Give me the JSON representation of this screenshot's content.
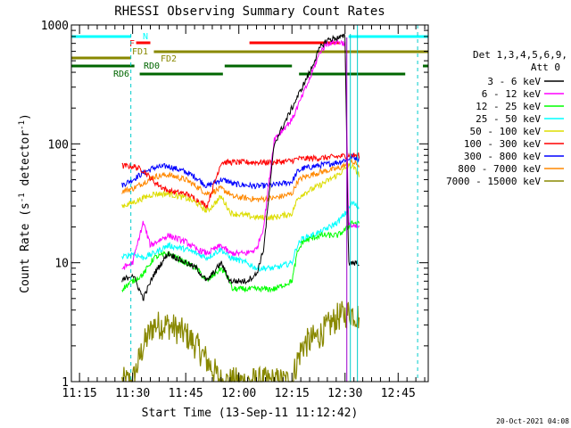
{
  "chart_data": {
    "type": "line",
    "title": "RHESSI Observing Summary Count Rates",
    "xlabel": "Start Time (13-Sep-11 11:12:42)",
    "ylabel_parts": [
      "Count Rate (s",
      "-1",
      " detector",
      "-1",
      ")"
    ],
    "y_scale": "log",
    "ylim": [
      1,
      1000
    ],
    "xlim_minutes": [
      672.7,
      773.5
    ],
    "x_ticks": [
      {
        "label": "11:15",
        "minutes": 675
      },
      {
        "label": "11:30",
        "minutes": 690
      },
      {
        "label": "11:45",
        "minutes": 705
      },
      {
        "label": "12:00",
        "minutes": 720
      },
      {
        "label": "12:15",
        "minutes": 735
      },
      {
        "label": "12:30",
        "minutes": 750
      },
      {
        "label": "12:45",
        "minutes": 765
      }
    ],
    "y_ticks": [
      {
        "label": "1",
        "value": 1
      },
      {
        "label": "10",
        "value": 10
      },
      {
        "label": "100",
        "value": 100
      },
      {
        "label": "1000",
        "value": 1000
      }
    ],
    "legend": {
      "placement": "right",
      "header": [
        "Det 1,3,4,5,6,9,",
        "Att 0"
      ],
      "entries": [
        {
          "label": "3 - 6 keV",
          "color": "#000000"
        },
        {
          "label": "6 - 12 keV",
          "color": "#ff00ff"
        },
        {
          "label": "12 - 25 keV",
          "color": "#00ff00"
        },
        {
          "label": "25 - 50 keV",
          "color": "#00ffff"
        },
        {
          "label": "50 - 100 keV",
          "color": "#dddd00"
        },
        {
          "label": "100 - 300 keV",
          "color": "#ff0000"
        },
        {
          "label": "300 - 800 keV",
          "color": "#0000ff"
        },
        {
          "label": "800 - 7000 keV",
          "color": "#ff8800"
        },
        {
          "label": "7000 - 15000 keV",
          "color": "#888800"
        }
      ]
    },
    "status_bars": [
      {
        "label": "N",
        "color": "#00ffff",
        "segments": [
          [
            672.7,
            689.5
          ],
          [
            751.0,
            773.5
          ]
        ]
      },
      {
        "label": "F",
        "color": "#ff0000",
        "segments": [
          [
            691.0,
            695.0
          ],
          [
            723.0,
            748.5
          ]
        ]
      },
      {
        "label": "FD1",
        "color": "#888800",
        "segments": [
          [
            672.7,
            689.5
          ]
        ]
      },
      {
        "label": "FD2",
        "color": "#888800",
        "segments": [
          [
            696.0,
            773.5
          ]
        ]
      },
      {
        "label": "RD0",
        "color": "#006600",
        "segments": [
          [
            672.7,
            690.5
          ],
          [
            716.0,
            735.0
          ],
          [
            772.0,
            773.5
          ]
        ]
      },
      {
        "label": "RD6",
        "color": "#006600",
        "segments": [
          [
            692.0,
            715.5
          ],
          [
            737.0,
            767.0
          ]
        ]
      }
    ],
    "data_intervals_minutes": [
      [
        687.0,
        690.0
      ],
      [
        690.0,
        717.5
      ],
      [
        717.5,
        736.5
      ],
      [
        736.5,
        751.5
      ],
      [
        751.5,
        754.0
      ]
    ],
    "series": [
      {
        "name": "3 - 6 keV",
        "color": "#000000",
        "x": [
          687,
          690,
          693,
          696,
          700,
          705,
          708,
          711,
          715,
          717.5,
          718,
          722,
          725,
          727,
          730,
          735,
          740,
          743,
          745,
          748,
          750,
          751,
          752,
          754
        ],
        "y": [
          7,
          8,
          5,
          8,
          12,
          10,
          9,
          7,
          10,
          7,
          7,
          7,
          8,
          13,
          100,
          200,
          400,
          650,
          750,
          780,
          800,
          10,
          10,
          10
        ]
      },
      {
        "name": "6 - 12 keV",
        "color": "#ff00ff",
        "x": [
          687,
          690,
          693,
          695,
          700,
          705,
          708,
          711,
          715,
          717.5,
          718,
          722,
          725,
          727,
          730,
          735,
          740,
          743,
          745,
          748,
          750,
          751,
          752,
          754
        ],
        "y": [
          9,
          10,
          22,
          14,
          17,
          15,
          13,
          12,
          14,
          12,
          12,
          12,
          13,
          20,
          110,
          160,
          350,
          600,
          700,
          720,
          700,
          22,
          20,
          20
        ]
      },
      {
        "name": "12 - 25 keV",
        "color": "#00ff00",
        "x": [
          687,
          690,
          693,
          696,
          700,
          705,
          708,
          711,
          715,
          717.5,
          718,
          722,
          725,
          730,
          735,
          736.5,
          738,
          743,
          748,
          751,
          752,
          754
        ],
        "y": [
          6,
          7,
          8,
          11,
          12,
          10,
          9,
          7,
          9,
          7,
          6,
          6,
          6,
          6,
          7,
          12,
          15,
          17,
          17,
          20,
          22,
          21
        ]
      },
      {
        "name": "25 - 50 keV",
        "color": "#00ffff",
        "x": [
          687,
          690,
          693,
          696,
          700,
          705,
          708,
          711,
          715,
          717.5,
          718,
          722,
          725,
          730,
          735,
          736.5,
          738,
          743,
          748,
          751,
          752,
          754
        ],
        "y": [
          11,
          12,
          11,
          12,
          14,
          13,
          12,
          11,
          13,
          11,
          11,
          10,
          9,
          9,
          10,
          14,
          16,
          18,
          22,
          28,
          32,
          29
        ]
      },
      {
        "name": "50 - 100 keV",
        "color": "#dddd00",
        "x": [
          687,
          690,
          693,
          696,
          700,
          705,
          708,
          711,
          715,
          717.5,
          718,
          722,
          725,
          730,
          735,
          736.5,
          738,
          743,
          748,
          751,
          752,
          754
        ],
        "y": [
          30,
          32,
          35,
          38,
          38,
          35,
          32,
          27,
          36,
          27,
          26,
          25,
          24,
          24,
          26,
          34,
          38,
          45,
          55,
          65,
          65,
          55
        ]
      },
      {
        "name": "100 - 300 keV",
        "color": "#ff0000",
        "x": [
          687,
          690,
          693,
          696,
          700,
          705,
          708,
          711,
          715,
          717.5,
          718,
          722,
          725,
          730,
          735,
          736.5,
          738,
          743,
          748,
          751,
          752,
          754
        ],
        "y": [
          65,
          65,
          60,
          48,
          40,
          38,
          34,
          30,
          70,
          70,
          70,
          70,
          70,
          70,
          72,
          75,
          75,
          76,
          78,
          80,
          80,
          80
        ]
      },
      {
        "name": "300 - 800 keV",
        "color": "#0000ff",
        "x": [
          687,
          690,
          693,
          696,
          700,
          705,
          708,
          711,
          715,
          717.5,
          718,
          722,
          725,
          730,
          735,
          736.5,
          738,
          743,
          748,
          751,
          752,
          754
        ],
        "y": [
          45,
          50,
          57,
          63,
          65,
          58,
          52,
          44,
          50,
          48,
          46,
          45,
          44,
          45,
          48,
          58,
          62,
          66,
          70,
          75,
          78,
          75
        ]
      },
      {
        "name": "800 - 7000 keV",
        "color": "#ff8800",
        "x": [
          687,
          690,
          693,
          696,
          700,
          705,
          708,
          711,
          715,
          717.5,
          718,
          722,
          725,
          730,
          735,
          736.5,
          738,
          743,
          748,
          751,
          752,
          754
        ],
        "y": [
          40,
          42,
          47,
          53,
          55,
          50,
          44,
          38,
          42,
          38,
          36,
          35,
          34,
          35,
          38,
          48,
          52,
          58,
          62,
          68,
          70,
          66
        ]
      },
      {
        "name": "7000 - 15000 keV",
        "color": "#888800",
        "x": [
          687,
          690,
          693,
          696,
          700,
          705,
          708,
          711,
          715,
          717.5,
          718,
          722,
          725,
          730,
          735,
          736.5,
          738,
          743,
          748,
          751,
          752,
          754
        ],
        "y": [
          1,
          1,
          2,
          3,
          3,
          2.5,
          2,
          1.5,
          1,
          1,
          1,
          1,
          1,
          1,
          1,
          1.5,
          2,
          2.5,
          3.5,
          3.8,
          3.8,
          3.5
        ]
      }
    ],
    "footer_timestamp": "20-Oct-2021 04:08"
  }
}
